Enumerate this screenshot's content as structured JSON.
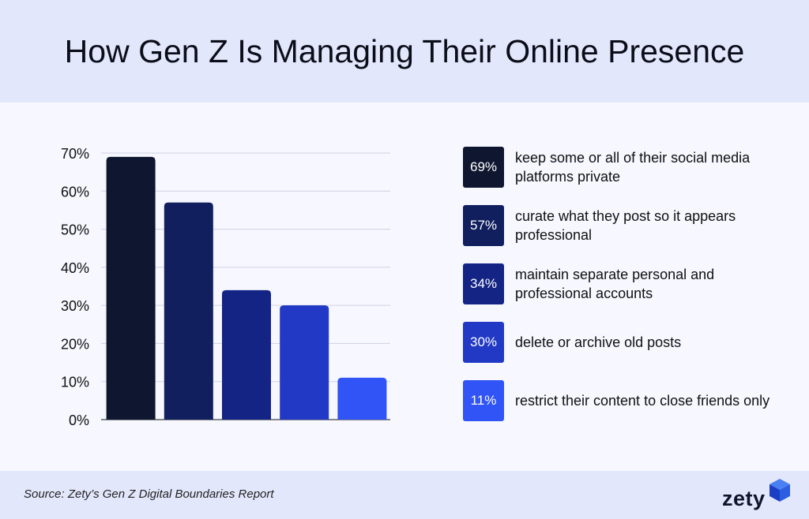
{
  "title": "How Gen Z Is Managing Their Online Presence",
  "source": "Source: Zety’s Gen Z Digital Boundaries Report",
  "logo": {
    "text": "zety",
    "icon": "zety-cube-icon"
  },
  "colors": {
    "header_bg": "#e3e7fc",
    "page_bg": "#f6f7ff",
    "bars": [
      "#0f1730",
      "#111f5e",
      "#132484",
      "#2139c4",
      "#3054f5"
    ]
  },
  "chart_data": {
    "type": "bar",
    "categories": [
      "keep some or all of their social media platforms private",
      "curate what they post so it appears professional",
      "maintain separate personal and professional accounts",
      "delete or archive old posts",
      "restrict their content to close friends only"
    ],
    "values": [
      69,
      57,
      34,
      30,
      11
    ],
    "value_labels": [
      "69%",
      "57%",
      "34%",
      "30%",
      "11%"
    ],
    "ylim": [
      0,
      70
    ],
    "yticks": [
      0,
      10,
      20,
      30,
      40,
      50,
      60,
      70
    ],
    "ytick_labels": [
      "0%",
      "10%",
      "20%",
      "30%",
      "40%",
      "50%",
      "60%",
      "70%"
    ],
    "grid": true,
    "legend_position": "right"
  }
}
